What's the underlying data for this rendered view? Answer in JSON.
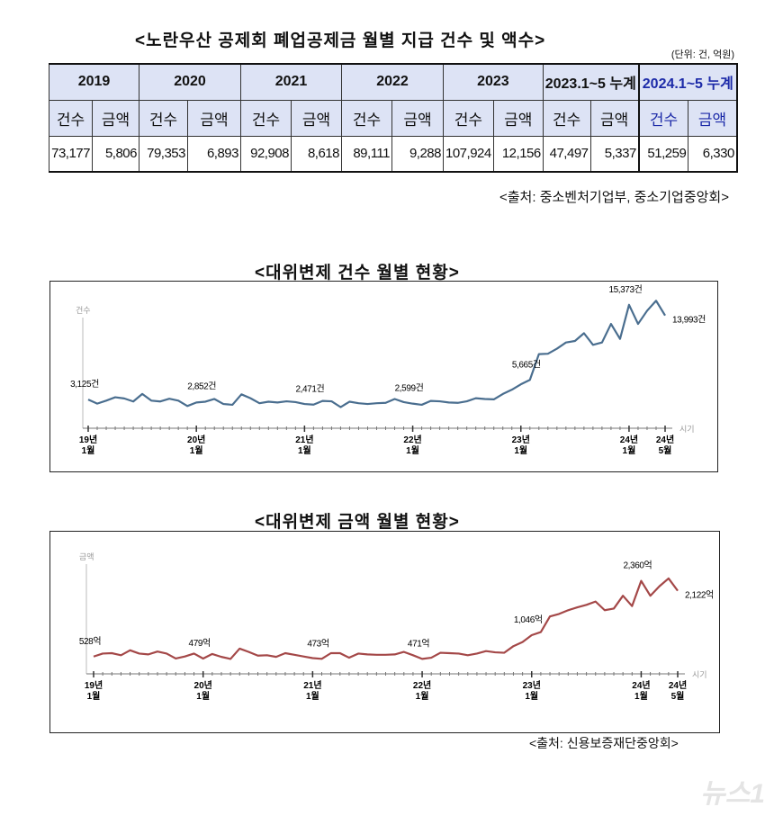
{
  "title": "<노란우산 공제회 폐업공제금 월별 지급 건수 및 액수>",
  "unit": "(단위: 건, 억원)",
  "table": {
    "years": [
      "2019",
      "2020",
      "2021",
      "2022",
      "2023",
      "2023.1~5 누계",
      "2024.1~5 누계"
    ],
    "sub": [
      "건수",
      "금액"
    ],
    "values": [
      "73,177",
      "5,806",
      "79,353",
      "6,893",
      "92,908",
      "8,618",
      "89,111",
      "9,288",
      "107,924",
      "12,156",
      "47,497",
      "5,337",
      "51,259",
      "6,330"
    ],
    "highlight_color": "#1c2aa8",
    "header_bg": "#dde3f5"
  },
  "source1": "<출처: 중소벤처기업부, 중소기업중앙회>",
  "source2": "<출처: 신용보증재단중앙회>",
  "watermark": "뉴스1",
  "chart_data": [
    {
      "type": "line",
      "title": "<대위변제 건수 월별 현황>",
      "ylabel": "건수",
      "xlabel": "시기",
      "color": "#4a6e8f",
      "xticks": [
        {
          "i": 0,
          "l1": "19년",
          "l2": "1월"
        },
        {
          "i": 12,
          "l1": "20년",
          "l2": "1월"
        },
        {
          "i": 24,
          "l1": "21년",
          "l2": "1월"
        },
        {
          "i": 36,
          "l1": "22년",
          "l2": "1월"
        },
        {
          "i": 48,
          "l1": "23년",
          "l2": "1월"
        },
        {
          "i": 60,
          "l1": "24년",
          "l2": "1월"
        },
        {
          "i": 64,
          "l1": "24년",
          "l2": "5월"
        }
      ],
      "x_range": [
        "2019-01",
        "2024-05"
      ],
      "values": [
        3125,
        2600,
        2990,
        3420,
        3270,
        2880,
        3850,
        2990,
        2880,
        3230,
        2990,
        2290,
        2750,
        2852,
        3200,
        2550,
        2450,
        3800,
        3300,
        2650,
        2850,
        2750,
        2900,
        2800,
        2550,
        2471,
        2950,
        2900,
        2150,
        2850,
        2650,
        2550,
        2650,
        2700,
        3200,
        2800,
        2599,
        2450,
        2950,
        2900,
        2750,
        2700,
        2900,
        3300,
        3200,
        3150,
        3850,
        4400,
        5100,
        5665,
        9000,
        9050,
        9700,
        10500,
        10700,
        11700,
        10200,
        10500,
        12900,
        10960,
        15373,
        12900,
        14600,
        15900,
        13993
      ],
      "annotations": [
        {
          "i": 0,
          "text": "3,125건"
        },
        {
          "i": 13,
          "text": "2,852건"
        },
        {
          "i": 25,
          "text": "2,471건"
        },
        {
          "i": 36,
          "text": "2,599건"
        },
        {
          "i": 49,
          "text": "5,665건"
        },
        {
          "i": 60,
          "text": "15,373건"
        },
        {
          "i": 64,
          "text": "13,993건"
        }
      ]
    },
    {
      "type": "line",
      "title": "<대위변제 금액 월별 현황>",
      "ylabel": "금액",
      "xlabel": "시기",
      "color": "#a44848",
      "xticks": [
        {
          "i": 0,
          "l1": "19년",
          "l2": "1월"
        },
        {
          "i": 12,
          "l1": "20년",
          "l2": "1월"
        },
        {
          "i": 24,
          "l1": "21년",
          "l2": "1월"
        },
        {
          "i": 36,
          "l1": "22년",
          "l2": "1월"
        },
        {
          "i": 48,
          "l1": "23년",
          "l2": "1월"
        },
        {
          "i": 60,
          "l1": "24년",
          "l2": "1월"
        },
        {
          "i": 64,
          "l1": "24년",
          "l2": "5월"
        }
      ],
      "x_range": [
        "2019-01",
        "2024-05"
      ],
      "values": [
        528,
        600,
        610,
        560,
        680,
        600,
        580,
        650,
        600,
        480,
        530,
        600,
        479,
        590,
        520,
        470,
        720,
        640,
        550,
        560,
        520,
        610,
        570,
        530,
        490,
        473,
        610,
        610,
        500,
        600,
        580,
        570,
        570,
        580,
        640,
        560,
        471,
        500,
        620,
        610,
        600,
        560,
        600,
        660,
        630,
        620,
        780,
        880,
        1046,
        1120,
        1500,
        1560,
        1650,
        1720,
        1780,
        1860,
        1650,
        1690,
        2000,
        1750,
        2360,
        2000,
        2230,
        2420,
        2122
      ],
      "annotations": [
        {
          "i": 0,
          "text": "528억"
        },
        {
          "i": 12,
          "text": "479억"
        },
        {
          "i": 25,
          "text": "473억"
        },
        {
          "i": 36,
          "text": "471억"
        },
        {
          "i": 48,
          "text": "1,046억"
        },
        {
          "i": 60,
          "text": "2,360억"
        },
        {
          "i": 64,
          "text": "2,122억"
        }
      ]
    }
  ]
}
